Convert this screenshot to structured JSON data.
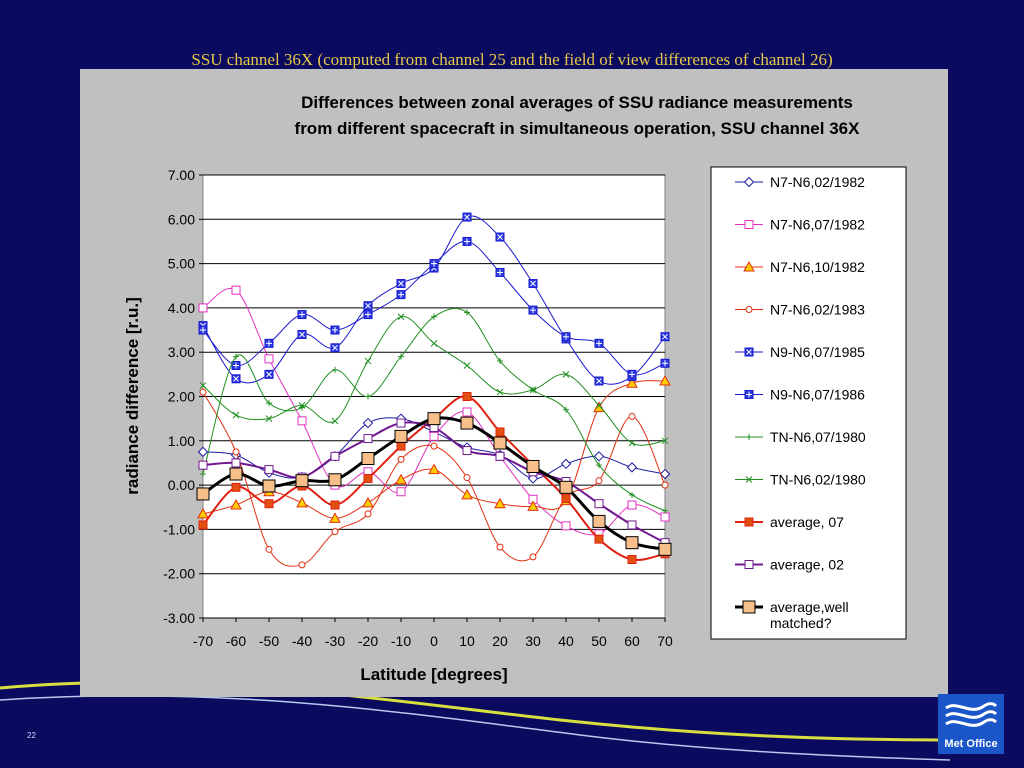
{
  "slide": {
    "title": "SSU channel 36X (computed from channel 25 and the field of view  differences of channel 26)",
    "page_number": "22",
    "logo_text": "Met Office",
    "colors": {
      "background": "#0a0a5e",
      "title": "#e8c84a",
      "panel": "#c0c0c0",
      "wave": "#d8e040",
      "logo": "#1a56c8"
    }
  },
  "chart_data": {
    "type": "line",
    "title_lines": [
      "Differences between zonal averages of SSU radiance measurements",
      "from different spacecraft in simultaneous operation, SSU channel 36X"
    ],
    "xlabel": "Latitude  [degrees]",
    "ylabel": "radiance difference  [r.u.]",
    "xlim": [
      -70,
      70
    ],
    "ylim": [
      -3,
      7
    ],
    "x": [
      -70,
      -60,
      -50,
      -40,
      -30,
      -20,
      -10,
      0,
      10,
      20,
      30,
      40,
      50,
      60,
      70
    ],
    "x_tick_labels": [
      "-70",
      "-60",
      "-50",
      "-40",
      "-30",
      "-20",
      "-10",
      "0",
      "10",
      "20",
      "30",
      "40",
      "50",
      "60",
      "70"
    ],
    "y_ticks": [
      7,
      6,
      5,
      4,
      3,
      2,
      1,
      0,
      -1,
      -2,
      -3
    ],
    "y_tick_labels": [
      "7.00",
      "6.00",
      "5.00",
      "4.00",
      "3.00",
      "2.00",
      "1.00",
      "0.00",
      "-1.00",
      "-2.00",
      "-3.00"
    ],
    "grid": "horizontal",
    "legend_position": "right",
    "series": [
      {
        "name": "N7-N6,02/1982",
        "color": "#1a1aa0",
        "marker": "diamond",
        "marker_fill": "#ffffff",
        "width": 1,
        "values": [
          0.75,
          0.68,
          0.28,
          0.18,
          0.65,
          1.4,
          1.5,
          1.2,
          0.85,
          0.68,
          0.15,
          0.48,
          0.65,
          0.4,
          0.25
        ]
      },
      {
        "name": "N7-N6,07/1982",
        "color": "#e030c0",
        "marker": "square",
        "marker_fill": "#ffffff",
        "width": 1,
        "values": [
          4.0,
          4.4,
          2.85,
          1.45,
          0.0,
          0.3,
          -0.15,
          1.1,
          1.65,
          0.65,
          -0.32,
          -0.92,
          -1.1,
          -0.45,
          -0.72
        ]
      },
      {
        "name": "N7-N6,10/1982",
        "color": "#e03010",
        "marker": "triangle",
        "marker_fill": "#ffcc00",
        "width": 1,
        "values": [
          -0.65,
          -0.45,
          -0.15,
          -0.4,
          -0.75,
          -0.4,
          0.12,
          0.35,
          -0.22,
          -0.42,
          -0.48,
          -0.35,
          1.75,
          2.3,
          2.35
        ]
      },
      {
        "name": "N7-N6,02/1983",
        "color": "#e03010",
        "marker": "circle",
        "marker_fill": "#ffffff",
        "width": 1,
        "values": [
          2.1,
          0.75,
          -1.45,
          -1.8,
          -1.05,
          -0.65,
          0.58,
          0.88,
          0.17,
          -1.4,
          -1.62,
          -0.28,
          0.1,
          1.55,
          0.0
        ]
      },
      {
        "name": "N9-N6,07/1985",
        "color": "#1a1ad0",
        "marker": "square-x",
        "marker_fill": "#2a3ae0",
        "width": 1,
        "values": [
          3.6,
          2.4,
          2.5,
          3.4,
          3.1,
          4.05,
          4.55,
          4.9,
          6.05,
          5.6,
          4.55,
          3.3,
          2.35,
          2.45,
          3.35
        ]
      },
      {
        "name": "N9-N6,07/1986",
        "color": "#1a1ad0",
        "marker": "square-plus",
        "marker_fill": "#2a3ae0",
        "width": 1,
        "values": [
          3.5,
          2.7,
          3.2,
          3.85,
          3.5,
          3.85,
          4.3,
          5.0,
          5.5,
          4.8,
          3.95,
          3.35,
          3.2,
          2.5,
          2.75
        ]
      },
      {
        "name": "TN-N6,07/1980",
        "color": "#209020",
        "marker": "plus",
        "marker_fill": "#209020",
        "width": 1,
        "values": [
          0.25,
          2.9,
          1.85,
          1.75,
          2.6,
          2.0,
          2.9,
          3.8,
          3.9,
          2.8,
          2.15,
          1.7,
          0.45,
          -0.22,
          -0.58
        ]
      },
      {
        "name": "TN-N6,02/1980",
        "color": "#209020",
        "marker": "x",
        "marker_fill": "#209020",
        "width": 1,
        "values": [
          2.25,
          1.58,
          1.5,
          1.8,
          1.45,
          2.8,
          3.8,
          3.2,
          2.7,
          2.1,
          2.15,
          2.5,
          1.8,
          0.95,
          1.0
        ]
      },
      {
        "name": "average, 07",
        "color": "#e02010",
        "marker": "square",
        "marker_fill": "#e05010",
        "width": 2,
        "values": [
          -0.9,
          -0.05,
          -0.42,
          -0.02,
          -0.45,
          0.15,
          0.88,
          1.5,
          2.0,
          1.2,
          0.45,
          -0.3,
          -1.22,
          -1.68,
          -1.55
        ]
      },
      {
        "name": "average, 02",
        "color": "#701890",
        "marker": "square",
        "marker_fill": "#ffffff",
        "width": 2,
        "values": [
          0.45,
          0.5,
          0.35,
          0.18,
          0.65,
          1.05,
          1.4,
          1.3,
          0.78,
          0.65,
          0.3,
          0.08,
          -0.42,
          -0.9,
          -1.3
        ]
      },
      {
        "name": "average,well matched?",
        "legend_lines": [
          "average,well",
          "matched?"
        ],
        "color": "#000000",
        "marker": "square-big",
        "marker_fill": "#f7c08a",
        "width": 3,
        "values": [
          -0.2,
          0.25,
          -0.02,
          0.1,
          0.12,
          0.6,
          1.1,
          1.5,
          1.4,
          0.95,
          0.42,
          -0.05,
          -0.82,
          -1.3,
          -1.45
        ]
      }
    ]
  }
}
